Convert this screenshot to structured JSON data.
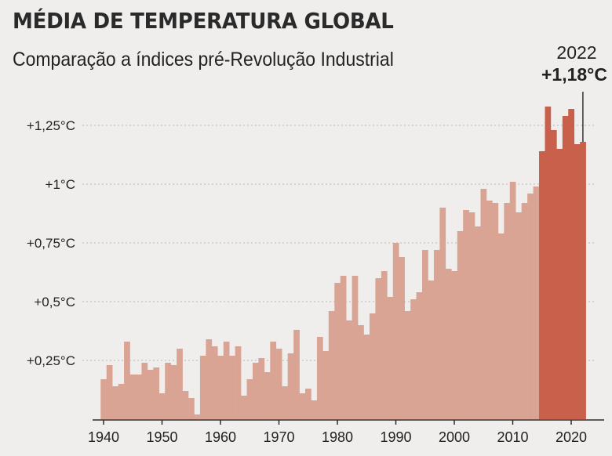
{
  "header": {
    "title": "MÉDIA DE TEMPERATURA GLOBAL",
    "subtitle": "Comparação a índices pré-Revolução Industrial"
  },
  "annotation": {
    "year": "2022",
    "value": "+1,18°C"
  },
  "colors": {
    "bar_historic": "#d9a493",
    "bar_recent": "#c9604b",
    "axis": "#2a2a2a",
    "grid": "#b8b8b8"
  },
  "chart_data": {
    "type": "bar",
    "title": "MÉDIA DE TEMPERATURA GLOBAL",
    "subtitle": "Comparação a índices pré-Revolução Industrial",
    "xlabel": "",
    "ylabel": "",
    "ylim": [
      0,
      1.4
    ],
    "grid": true,
    "highlight_from_year": 2015,
    "yticks": [
      {
        "value": 0.25,
        "label": "+0,25°C"
      },
      {
        "value": 0.5,
        "label": "+0,5°C"
      },
      {
        "value": 0.75,
        "label": "+0,75°C"
      },
      {
        "value": 1.0,
        "label": "+1°C"
      },
      {
        "value": 1.25,
        "label": "+1,25°C"
      }
    ],
    "xticks": [
      1940,
      1950,
      1960,
      1970,
      1980,
      1990,
      2000,
      2010,
      2020
    ],
    "x": [
      1940,
      1941,
      1942,
      1943,
      1944,
      1945,
      1946,
      1947,
      1948,
      1949,
      1950,
      1951,
      1952,
      1953,
      1954,
      1955,
      1956,
      1957,
      1958,
      1959,
      1960,
      1961,
      1962,
      1963,
      1964,
      1965,
      1966,
      1967,
      1968,
      1969,
      1970,
      1971,
      1972,
      1973,
      1974,
      1975,
      1976,
      1977,
      1978,
      1979,
      1980,
      1981,
      1982,
      1983,
      1984,
      1985,
      1986,
      1987,
      1988,
      1989,
      1990,
      1991,
      1992,
      1993,
      1994,
      1995,
      1996,
      1997,
      1998,
      1999,
      2000,
      2001,
      2002,
      2003,
      2004,
      2005,
      2006,
      2007,
      2008,
      2009,
      2010,
      2011,
      2012,
      2013,
      2014,
      2015,
      2016,
      2017,
      2018,
      2019,
      2020,
      2021,
      2022
    ],
    "values": [
      0.17,
      0.23,
      0.14,
      0.15,
      0.33,
      0.19,
      0.19,
      0.24,
      0.21,
      0.22,
      0.11,
      0.24,
      0.23,
      0.3,
      0.12,
      0.09,
      0.02,
      0.27,
      0.34,
      0.31,
      0.27,
      0.33,
      0.27,
      0.31,
      0.1,
      0.17,
      0.24,
      0.26,
      0.2,
      0.33,
      0.3,
      0.14,
      0.28,
      0.38,
      0.11,
      0.13,
      0.08,
      0.35,
      0.29,
      0.46,
      0.58,
      0.61,
      0.42,
      0.61,
      0.4,
      0.36,
      0.45,
      0.6,
      0.63,
      0.52,
      0.75,
      0.69,
      0.46,
      0.51,
      0.54,
      0.72,
      0.59,
      0.72,
      0.9,
      0.64,
      0.63,
      0.8,
      0.89,
      0.88,
      0.82,
      0.98,
      0.93,
      0.92,
      0.79,
      0.92,
      1.01,
      0.88,
      0.92,
      0.96,
      0.99,
      1.14,
      1.33,
      1.23,
      1.15,
      1.29,
      1.32,
      1.17,
      1.18
    ],
    "annotations": [
      {
        "x": 2022,
        "text": "2022 +1,18°C"
      }
    ]
  }
}
